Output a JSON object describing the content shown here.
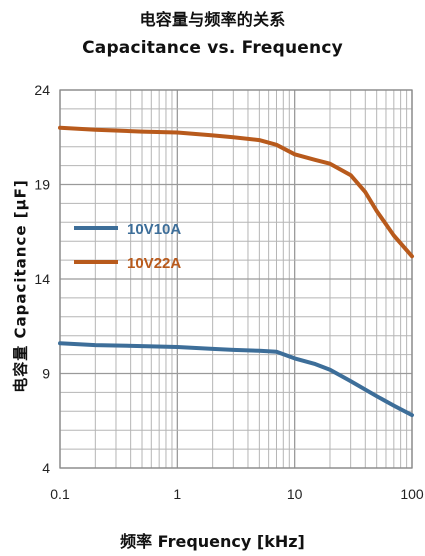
{
  "chart_data": {
    "type": "line",
    "title": "电容量与频率的关系",
    "subtitle": "Capacitance vs. Frequency",
    "xlabel": "频率 Frequency [kHz]",
    "ylabel": "电容量 Capacitance [μF]",
    "xscale": "log",
    "xlim": [
      0.1,
      100
    ],
    "ylim": [
      4,
      24
    ],
    "xticks": [
      0.1,
      1,
      10,
      100
    ],
    "xtick_labels": [
      "0.1",
      "1",
      "10",
      "100"
    ],
    "yticks": [
      4,
      9,
      14,
      19,
      24
    ],
    "ytick_labels": [
      "4",
      "9",
      "14",
      "19",
      "24"
    ],
    "grid": true,
    "legend_position": "left-center",
    "series": [
      {
        "name": "10V10A",
        "color": "#3d6e99",
        "x": [
          0.1,
          0.2,
          0.5,
          1,
          2,
          3,
          5,
          7,
          10,
          15,
          20,
          30,
          50,
          70,
          100
        ],
        "y": [
          10.6,
          10.5,
          10.45,
          10.4,
          10.3,
          10.25,
          10.2,
          10.15,
          9.8,
          9.5,
          9.2,
          8.6,
          7.8,
          7.3,
          6.8
        ]
      },
      {
        "name": "10V22A",
        "color": "#b85a1c",
        "x": [
          0.1,
          0.2,
          0.5,
          1,
          2,
          3,
          5,
          7,
          10,
          15,
          20,
          30,
          40,
          50,
          70,
          100
        ],
        "y": [
          22.0,
          21.9,
          21.8,
          21.75,
          21.6,
          21.5,
          21.35,
          21.1,
          20.6,
          20.3,
          20.1,
          19.5,
          18.6,
          17.6,
          16.3,
          15.2
        ]
      }
    ]
  }
}
